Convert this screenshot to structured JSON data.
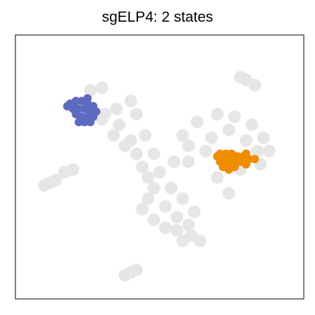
{
  "chart_data": {
    "type": "scatter",
    "title": "sgELP4: 2 states",
    "xlabel": "",
    "ylabel": "",
    "xlim": [
      0,
      100
    ],
    "ylim": [
      0,
      100
    ],
    "grid": false,
    "axis_ticks": false,
    "background_color": "#e6e6e6",
    "background_clusters": [
      {
        "name": "",
        "points": [
          [
            40,
            75
          ],
          [
            35,
            72
          ],
          [
            30,
            68
          ],
          [
            34,
            62
          ],
          [
            38,
            58
          ],
          [
            42,
            55
          ],
          [
            44,
            50
          ],
          [
            46,
            46
          ],
          [
            48,
            42
          ],
          [
            46,
            38
          ],
          [
            44,
            34
          ],
          [
            48,
            30
          ],
          [
            52,
            27
          ],
          [
            56,
            26
          ],
          [
            60,
            28
          ],
          [
            62,
            33
          ],
          [
            58,
            38
          ],
          [
            54,
            42
          ],
          [
            50,
            48
          ],
          [
            48,
            55
          ],
          [
            45,
            62
          ],
          [
            42,
            70
          ],
          [
            31,
            70
          ],
          [
            36,
            66
          ],
          [
            40,
            60
          ],
          [
            52,
            35
          ],
          [
            56,
            31
          ],
          [
            61,
            24
          ],
          [
            64,
            22
          ],
          [
            58,
            22
          ]
        ]
      },
      {
        "name": "",
        "points": [
          [
            58,
            62
          ],
          [
            63,
            67
          ],
          [
            70,
            70
          ],
          [
            76,
            69
          ],
          [
            82,
            66
          ],
          [
            86,
            61
          ],
          [
            88,
            56
          ],
          [
            85,
            51
          ],
          [
            78,
            49
          ],
          [
            72,
            52
          ],
          [
            66,
            56
          ],
          [
            60,
            58
          ],
          [
            55,
            52
          ],
          [
            60,
            52
          ],
          [
            68,
            61
          ],
          [
            74,
            64
          ],
          [
            80,
            60
          ],
          [
            84,
            56
          ],
          [
            70,
            46
          ],
          [
            74,
            40
          ]
        ]
      },
      {
        "name": "",
        "points": [
          [
            80,
            83
          ],
          [
            83,
            81
          ],
          [
            78,
            84
          ]
        ]
      },
      {
        "name": "",
        "points": [
          [
            12,
            44
          ],
          [
            14,
            45
          ],
          [
            10,
            43
          ]
        ]
      },
      {
        "name": "",
        "points": [
          [
            40,
            10
          ],
          [
            42,
            11
          ],
          [
            38,
            9
          ]
        ]
      },
      {
        "name": "",
        "points": [
          [
            30,
            80
          ],
          [
            26,
            79
          ]
        ]
      },
      {
        "name": "",
        "points": [
          [
            17,
            48
          ],
          [
            20,
            49
          ]
        ]
      }
    ],
    "series": [
      {
        "name": "",
        "color": "#5c6bc0",
        "points": [
          [
            19,
            74
          ],
          [
            21,
            75
          ],
          [
            23,
            75
          ],
          [
            25,
            74
          ],
          [
            27,
            73
          ],
          [
            20,
            72
          ],
          [
            22,
            72
          ],
          [
            24,
            72
          ],
          [
            26,
            71
          ],
          [
            28,
            71
          ],
          [
            21,
            70
          ],
          [
            23,
            69
          ],
          [
            25,
            69
          ],
          [
            27,
            69
          ],
          [
            22,
            67
          ],
          [
            24,
            67
          ],
          [
            26,
            67
          ],
          [
            20,
            73
          ],
          [
            18,
            73
          ],
          [
            25,
            76
          ]
        ]
      },
      {
        "name": "",
        "color": "#f08c00",
        "points": [
          [
            71,
            55
          ],
          [
            73,
            55
          ],
          [
            75,
            55
          ],
          [
            77,
            54
          ],
          [
            79,
            54
          ],
          [
            81,
            53
          ],
          [
            70,
            54
          ],
          [
            72,
            53
          ],
          [
            74,
            53
          ],
          [
            76,
            52
          ],
          [
            78,
            52
          ],
          [
            80,
            51
          ],
          [
            71,
            52
          ],
          [
            73,
            51
          ],
          [
            75,
            51
          ],
          [
            74,
            49
          ],
          [
            76,
            50
          ],
          [
            72,
            50
          ],
          [
            83,
            53
          ],
          [
            80,
            55
          ]
        ]
      }
    ]
  }
}
